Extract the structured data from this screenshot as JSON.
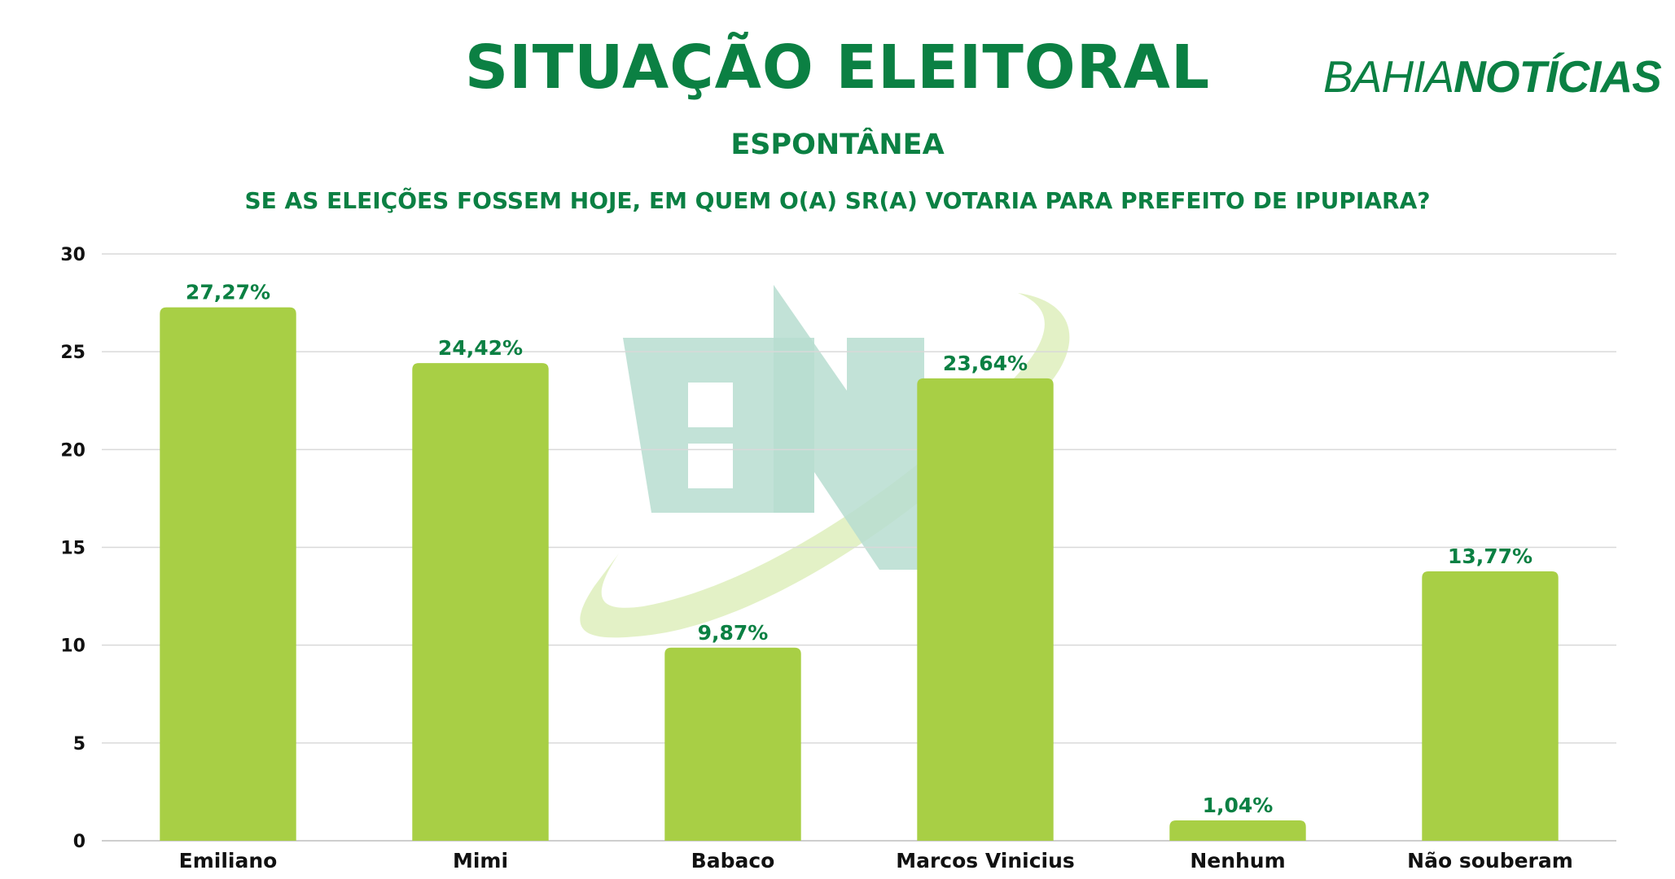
{
  "header": {
    "title": "SITUAÇÃO ELEITORAL",
    "subtitle": "ESPONTÂNEA",
    "question": "SE AS ELEIÇÕES FOSSEM HOJE, EM QUEM O(A) SR(A) VOTARIA PARA PREFEITO DE IPUPIARA?"
  },
  "brand": {
    "part1": "BAHIA",
    "part2": "NOTÍCIAS"
  },
  "colors": {
    "accent": "#0b8043",
    "bar": "#a8cf45",
    "grid": "#d9d9d9"
  },
  "chart_data": {
    "type": "bar",
    "categories": [
      "Emiliano",
      "Mimi",
      "Babaco",
      "Marcos Vinicius",
      "Nenhum",
      "Não souberam"
    ],
    "values": [
      27.27,
      24.42,
      9.87,
      23.64,
      1.04,
      13.77
    ],
    "value_labels": [
      "27,27%",
      "24,42%",
      "9,87%",
      "23,64%",
      "1,04%",
      "13,77%"
    ],
    "yticks": [
      0,
      5,
      10,
      15,
      20,
      25,
      30
    ],
    "ylim": [
      0,
      30
    ],
    "grid": true,
    "title": "SITUAÇÃO ELEITORAL",
    "xlabel": "",
    "ylabel": ""
  }
}
